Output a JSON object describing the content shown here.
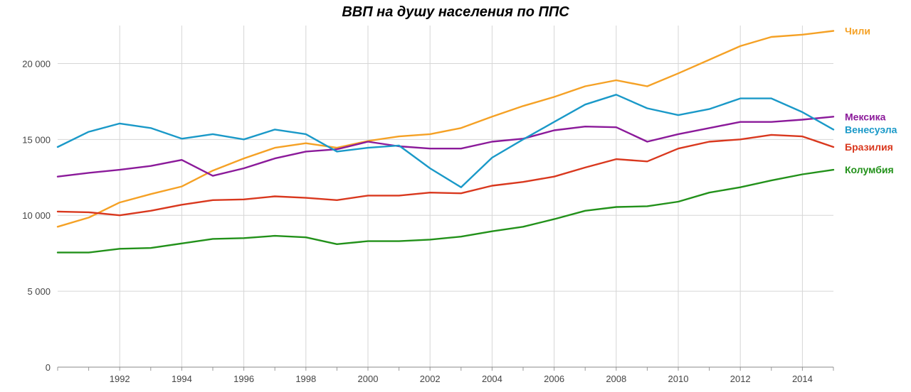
{
  "chart_data": {
    "type": "line",
    "title": "ВВП на душу населения по ППС",
    "xlabel": "",
    "ylabel": "",
    "xlim": [
      1990,
      2015
    ],
    "ylim": [
      0,
      22500
    ],
    "x_ticks": [
      1992,
      1994,
      1996,
      1998,
      2000,
      2002,
      2004,
      2006,
      2008,
      2010,
      2012,
      2014
    ],
    "y_ticks": [
      0,
      5000,
      10000,
      15000,
      20000
    ],
    "y_tick_labels": [
      "0",
      "5 000",
      "10 000",
      "15 000",
      "20 000"
    ],
    "grid": true,
    "legend": "right, inline labels at line ends",
    "x": [
      1990,
      1991,
      1992,
      1993,
      1994,
      1995,
      1996,
      1997,
      1998,
      1999,
      2000,
      2001,
      2002,
      2003,
      2004,
      2005,
      2006,
      2007,
      2008,
      2009,
      2010,
      2011,
      2012,
      2013,
      2014,
      2015
    ],
    "series": [
      {
        "name": "Чили",
        "color": "#f5a125",
        "values": [
          9250,
          9850,
          10850,
          11400,
          11900,
          12950,
          13750,
          14450,
          14750,
          14450,
          14900,
          15200,
          15350,
          15750,
          16500,
          17200,
          17800,
          18500,
          18900,
          18500,
          19350,
          20250,
          21150,
          21750,
          21900,
          22150
        ]
      },
      {
        "name": "Мексика",
        "color": "#8b1a9a",
        "values": [
          12550,
          12800,
          13000,
          13250,
          13650,
          12600,
          13100,
          13750,
          14200,
          14350,
          14850,
          14550,
          14400,
          14400,
          14850,
          15050,
          15600,
          15850,
          15800,
          14850,
          15350,
          15750,
          16150,
          16150,
          16300,
          16500
        ]
      },
      {
        "name": "Венесуэла",
        "color": "#1a99c8",
        "values": [
          14500,
          15500,
          16050,
          15750,
          15050,
          15350,
          15000,
          15650,
          15350,
          14200,
          14450,
          14600,
          13100,
          11850,
          13800,
          15000,
          16150,
          17300,
          17950,
          17050,
          16600,
          17000,
          17700,
          17700,
          16800,
          15650
        ]
      },
      {
        "name": "Бразилия",
        "color": "#d9381e",
        "values": [
          10250,
          10200,
          10000,
          10300,
          10700,
          11000,
          11050,
          11250,
          11150,
          11000,
          11300,
          11300,
          11500,
          11450,
          11950,
          12200,
          12550,
          13150,
          13700,
          13550,
          14400,
          14850,
          15000,
          15300,
          15200,
          14500
        ]
      },
      {
        "name": "Колумбия",
        "color": "#22911a",
        "values": [
          7550,
          7550,
          7800,
          7850,
          8150,
          8450,
          8500,
          8650,
          8550,
          8100,
          8300,
          8300,
          8400,
          8600,
          8950,
          9250,
          9750,
          10300,
          10550,
          10600,
          10900,
          11500,
          11850,
          12300,
          12700,
          13000
        ]
      }
    ]
  }
}
